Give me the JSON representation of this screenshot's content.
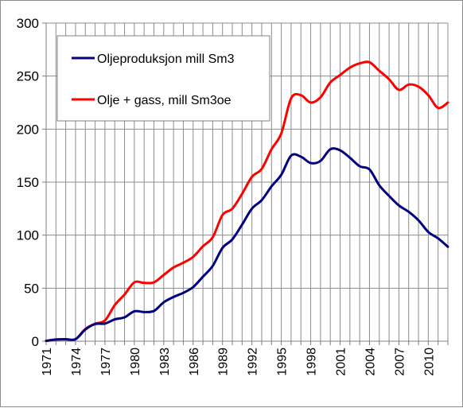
{
  "chart_data": {
    "type": "line",
    "title": "",
    "xlabel": "",
    "ylabel": "",
    "x": [
      1971,
      1972,
      1973,
      1974,
      1975,
      1976,
      1977,
      1978,
      1979,
      1980,
      1981,
      1982,
      1983,
      1984,
      1985,
      1986,
      1987,
      1988,
      1989,
      1990,
      1991,
      1992,
      1993,
      1994,
      1995,
      1996,
      1997,
      1998,
      1999,
      2000,
      2001,
      2002,
      2003,
      2004,
      2005,
      2006,
      2007,
      2008,
      2009,
      2010,
      2011,
      2012
    ],
    "xlim": [
      1971,
      2012
    ],
    "ylim": [
      0,
      300
    ],
    "yticks": [
      0,
      50,
      100,
      150,
      200,
      250,
      300
    ],
    "xtick_labels": [
      "1971",
      "1974",
      "1977",
      "1980",
      "1983",
      "1986",
      "1989",
      "1992",
      "1995",
      "1998",
      "2001",
      "2004",
      "2007",
      "2010"
    ],
    "grid": true,
    "legend_position": "top-left",
    "series": [
      {
        "name": "Oljeproduksjon mill Sm3",
        "color": "#000080",
        "values": [
          0.3,
          1.6,
          1.8,
          1.9,
          11.0,
          16.2,
          16.6,
          20.6,
          22.5,
          28.2,
          27.5,
          28.5,
          36.7,
          41.7,
          45.6,
          51.0,
          60.8,
          71.0,
          88.0,
          96.0,
          110.0,
          125.0,
          133.0,
          146.0,
          157.0,
          175.0,
          174.0,
          168.0,
          170.0,
          181.0,
          180.0,
          173.0,
          165.0,
          162.0,
          147.0,
          137.0,
          128.0,
          122.0,
          114.0,
          103.0,
          97.0,
          89.0
        ]
      },
      {
        "name": "Olje + gass, mill Sm3oe",
        "color": "#ff0000",
        "values": [
          0.3,
          1.6,
          1.9,
          1.9,
          11.5,
          16.5,
          19.5,
          34.0,
          44.0,
          55.5,
          55.0,
          55.5,
          62.5,
          69.5,
          74.0,
          79.5,
          89.5,
          98.0,
          119.0,
          125.0,
          139.0,
          155.0,
          162.5,
          181.0,
          196.0,
          229.0,
          232.0,
          225.0,
          230.0,
          244.0,
          251.0,
          258.0,
          262.0,
          263.0,
          255.0,
          247.0,
          237.0,
          242.0,
          240.0,
          232.0,
          220.0,
          225.0
        ]
      }
    ]
  }
}
